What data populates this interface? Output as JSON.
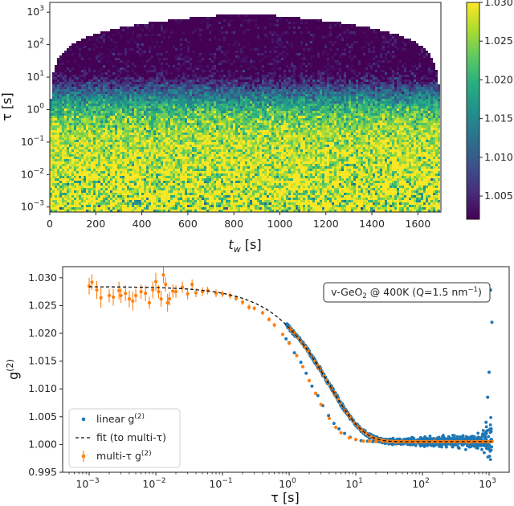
{
  "chart_data": [
    {
      "type": "heatmap",
      "xlabel": "t_w [s]",
      "ylabel": "τ [s]",
      "xlim": [
        0,
        1700
      ],
      "ylim": [
        0.0007,
        2000
      ],
      "y_scale": "log",
      "x_ticks": [
        "0",
        "200",
        "400",
        "600",
        "800",
        "1000",
        "1200",
        "1400",
        "1600"
      ],
      "y_ticks": [
        {
          "mant": "10",
          "exp": "3"
        },
        {
          "mant": "10",
          "exp": "2"
        },
        {
          "mant": "10",
          "exp": "1"
        },
        {
          "mant": "10",
          "exp": "0"
        },
        {
          "mant": "10",
          "exp": "−1"
        },
        {
          "mant": "10",
          "exp": "−2"
        },
        {
          "mant": "10",
          "exp": "−3"
        }
      ],
      "colormap": "viridis",
      "colorbar": {
        "range": [
          1.002,
          1.03
        ],
        "ticks": [
          "1.030",
          "1.025",
          "1.020",
          "1.015",
          "1.010",
          "1.005"
        ]
      }
    },
    {
      "type": "scatter",
      "xlabel": "τ [s]",
      "ylabel": "g(2)",
      "x_scale": "log",
      "xlim": [
        0.0004,
        2000
      ],
      "ylim": [
        0.995,
        1.032
      ],
      "x_ticks": [
        {
          "mant": "10",
          "exp": "−3"
        },
        {
          "mant": "10",
          "exp": "−2"
        },
        {
          "mant": "10",
          "exp": "−1"
        },
        {
          "mant": "10",
          "exp": "0"
        },
        {
          "mant": "10",
          "exp": "1"
        },
        {
          "mant": "10",
          "exp": "2"
        },
        {
          "mant": "10",
          "exp": "3"
        }
      ],
      "y_ticks": [
        "1.030",
        "1.025",
        "1.020",
        "1.015",
        "1.010",
        "1.005",
        "1.000",
        "0.995"
      ],
      "annotation": "v-GeO₂ @ 400K (Q=1.5 nm⁻¹)",
      "legend": {
        "position": "lower-left",
        "entries": [
          "linear g(2)",
          "fit (to multi-τ)",
          "multi-τ g(2)"
        ]
      },
      "fit": {
        "baseline": 1.0005,
        "contrast": 0.0279,
        "tau_c": 4.0,
        "beta": 0.85
      },
      "series": [
        {
          "name": "multi-τ g(2)",
          "color": "#ff7f0e",
          "x": [
            0.001,
            0.0011,
            0.0013,
            0.0015,
            0.002,
            0.0023,
            0.0028,
            0.003,
            0.0035,
            0.004,
            0.0045,
            0.005,
            0.006,
            0.007,
            0.008,
            0.009,
            0.01,
            0.011,
            0.012,
            0.013,
            0.014,
            0.015,
            0.016,
            0.018,
            0.02,
            0.025,
            0.03,
            0.035,
            0.04,
            0.05,
            0.06,
            0.08,
            0.1,
            0.13,
            0.16,
            0.2,
            0.25,
            0.3,
            0.4,
            0.5,
            0.6,
            0.8,
            1,
            1.3,
            1.6,
            2,
            2.5,
            3,
            4,
            5,
            6,
            8,
            10,
            13,
            16,
            20,
            25,
            30,
            40,
            50,
            60,
            80,
            100,
            150,
            200,
            300,
            500,
            700,
            1000
          ],
          "y": [
            1.0285,
            1.0292,
            1.0278,
            1.0264,
            1.0268,
            1.0265,
            1.0277,
            1.0268,
            1.0272,
            1.0262,
            1.0258,
            1.0268,
            1.0275,
            1.0272,
            1.0255,
            1.0278,
            1.0293,
            1.0275,
            1.0262,
            1.0305,
            1.0288,
            1.0255,
            1.0262,
            1.0276,
            1.0275,
            1.0283,
            1.0271,
            1.0288,
            1.0273,
            1.0275,
            1.0277,
            1.0272,
            1.0271,
            1.0268,
            1.0263,
            1.0256,
            1.0247,
            1.0245,
            1.0237,
            1.0225,
            1.0215,
            1.0198,
            1.0182,
            1.016,
            1.014,
            1.0115,
            1.0092,
            1.0072,
            1.0047,
            1.0031,
            1.0021,
            1.0012,
            1.0009,
            1.0006,
            1.0006,
            1.0005,
            1.0006,
            1.0005,
            1.0004,
            1.0006,
            1.0005,
            1.0004,
            1.0005,
            1.0006,
            1.0005,
            1.0005,
            1.0004,
            1.0005,
            1.0005
          ],
          "err": [
            0.0015,
            0.0014,
            0.0016,
            0.0018,
            0.0012,
            0.0015,
            0.0016,
            0.0013,
            0.0014,
            0.0015,
            0.0017,
            0.0012,
            0.0013,
            0.0014,
            0.0011,
            0.0015,
            0.0016,
            0.0012,
            0.0014,
            0.0015,
            0.0013,
            0.0016,
            0.0012,
            0.0012,
            0.0011,
            0.001,
            0.001,
            0.0009,
            0.0008,
            0.0008,
            0.0007,
            0.0007,
            0.0006,
            0.0006,
            0.0005,
            0.0005,
            0.0005,
            0.0004,
            0.0004,
            0.0004,
            0.0004,
            0.0003,
            0.0003,
            0.0003,
            0.0003,
            0.0003,
            0.0003,
            0.0002,
            0.0002,
            0.0002,
            0.0002,
            0.0002,
            0.0002,
            0.0002,
            0.0001,
            0.0001,
            0.0001,
            0.0001,
            0.0001,
            0.0001,
            0.0001,
            0.0001,
            0.0001,
            0.0001,
            0.0001,
            0.0001,
            0.0001,
            0.0001,
            0.0001
          ]
        },
        {
          "name": "linear g(2)",
          "color": "#1f77b4",
          "x": [
            0.9,
            1,
            1.2,
            1.5,
            1.8,
            2.2,
            2.7,
            3.2,
            3.9,
            4.7,
            5.6,
            6.8,
            8.2,
            10,
            12,
            15,
            18,
            22,
            27,
            33,
            39,
            47,
            56,
            68,
            82,
            100,
            120,
            150,
            180,
            220,
            270,
            330,
            390,
            470,
            560,
            680,
            820,
            900,
            950,
            1000,
            1050,
            1100
          ],
          "y": [
            1.019,
            1.0183,
            1.0165,
            1.0148,
            1.0128,
            1.0105,
            1.0088,
            1.007,
            1.0052,
            1.0038,
            1.0028,
            1.002,
            1.0013,
            1.0009,
            1.0007,
            1.0006,
            1.0005,
            1.0005,
            1.0004,
            1.0005,
            1.0005,
            1.0004,
            1.0006,
            1.0005,
            1.0004,
            1.0005,
            1.0005,
            1.0006,
            1.0004,
            1.0005,
            1.0005,
            1.0006,
            1.0005,
            1.0006,
            1.0008,
            1.001,
            1.0018,
            1.004,
            1.0085,
            1.013,
            1.0278,
            1.022
          ]
        }
      ]
    }
  ]
}
